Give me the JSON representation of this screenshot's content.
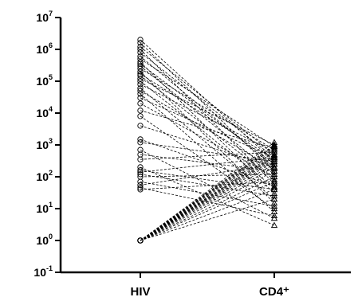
{
  "chart_data": {
    "type": "scatter",
    "subtype": "paired-before-after",
    "categories": [
      "HIV",
      "CD4⁺"
    ],
    "yscale": "log10",
    "ylim": [
      0.1,
      10000000
    ],
    "yticks": [
      {
        "base": "10",
        "exp": "7",
        "value": 10000000
      },
      {
        "base": "10",
        "exp": "6",
        "value": 1000000
      },
      {
        "base": "10",
        "exp": "5",
        "value": 100000
      },
      {
        "base": "10",
        "exp": "4",
        "value": 10000
      },
      {
        "base": "10",
        "exp": "3",
        "value": 1000
      },
      {
        "base": "10",
        "exp": "2",
        "value": 100
      },
      {
        "base": "10",
        "exp": "1",
        "value": 10
      },
      {
        "base": "10",
        "exp": "0",
        "value": 1
      },
      {
        "base": "10",
        "exp": "-1",
        "value": 0.1
      }
    ],
    "markers": {
      "HIV": "circle",
      "CD4⁺": "triangle"
    },
    "line_style": "dashed",
    "pairs": [
      {
        "hiv": 2000000,
        "cd4": 300
      },
      {
        "hiv": 1600000,
        "cd4": 150
      },
      {
        "hiv": 1200000,
        "cd4": 500
      },
      {
        "hiv": 1000000,
        "cd4": 60
      },
      {
        "hiv": 800000,
        "cd4": 400
      },
      {
        "hiv": 600000,
        "cd4": 200
      },
      {
        "hiv": 500000,
        "cd4": 900
      },
      {
        "hiv": 400000,
        "cd4": 30
      },
      {
        "hiv": 350000,
        "cd4": 250
      },
      {
        "hiv": 300000,
        "cd4": 120
      },
      {
        "hiv": 250000,
        "cd4": 700
      },
      {
        "hiv": 200000,
        "cd4": 15
      },
      {
        "hiv": 170000,
        "cd4": 350
      },
      {
        "hiv": 150000,
        "cd4": 80
      },
      {
        "hiv": 120000,
        "cd4": 1000
      },
      {
        "hiv": 100000,
        "cd4": 45
      },
      {
        "hiv": 80000,
        "cd4": 600
      },
      {
        "hiv": 60000,
        "cd4": 20
      },
      {
        "hiv": 50000,
        "cd4": 180
      },
      {
        "hiv": 40000,
        "cd4": 8
      },
      {
        "hiv": 30000,
        "cd4": 400
      },
      {
        "hiv": 20000,
        "cd4": 100
      },
      {
        "hiv": 12000,
        "cd4": 800
      },
      {
        "hiv": 8000,
        "cd4": 10
      },
      {
        "hiv": 4000,
        "cd4": 200
      },
      {
        "hiv": 1500,
        "cd4": 50
      },
      {
        "hiv": 1200,
        "cd4": 300
      },
      {
        "hiv": 700,
        "cd4": 5
      },
      {
        "hiv": 500,
        "cd4": 150
      },
      {
        "hiv": 350,
        "cd4": 600
      },
      {
        "hiv": 200,
        "cd4": 3
      },
      {
        "hiv": 160,
        "cd4": 40
      },
      {
        "hiv": 140,
        "cd4": 400
      },
      {
        "hiv": 120,
        "cd4": 25
      },
      {
        "hiv": 100,
        "cd4": 120
      },
      {
        "hiv": 70,
        "cd4": 12
      },
      {
        "hiv": 55,
        "cd4": 250
      },
      {
        "hiv": 45,
        "cd4": 6
      },
      {
        "hiv": 40,
        "cd4": 70
      },
      {
        "hiv": 1,
        "cd4": 1200
      },
      {
        "hiv": 1,
        "cd4": 1000
      },
      {
        "hiv": 1,
        "cd4": 900
      },
      {
        "hiv": 1,
        "cd4": 800
      },
      {
        "hiv": 1,
        "cd4": 700
      },
      {
        "hiv": 1,
        "cd4": 600
      },
      {
        "hiv": 1,
        "cd4": 500
      },
      {
        "hiv": 1,
        "cd4": 450
      },
      {
        "hiv": 1,
        "cd4": 400
      },
      {
        "hiv": 1,
        "cd4": 350
      },
      {
        "hiv": 1,
        "cd4": 300
      },
      {
        "hiv": 1,
        "cd4": 250
      },
      {
        "hiv": 1,
        "cd4": 200
      },
      {
        "hiv": 1,
        "cd4": 150
      },
      {
        "hiv": 1,
        "cd4": 100
      },
      {
        "hiv": 1,
        "cd4": 70
      },
      {
        "hiv": 1,
        "cd4": 40
      },
      {
        "hiv": 1,
        "cd4": 20
      }
    ],
    "colors": {
      "stroke": "#000000",
      "background": "#ffffff"
    }
  }
}
